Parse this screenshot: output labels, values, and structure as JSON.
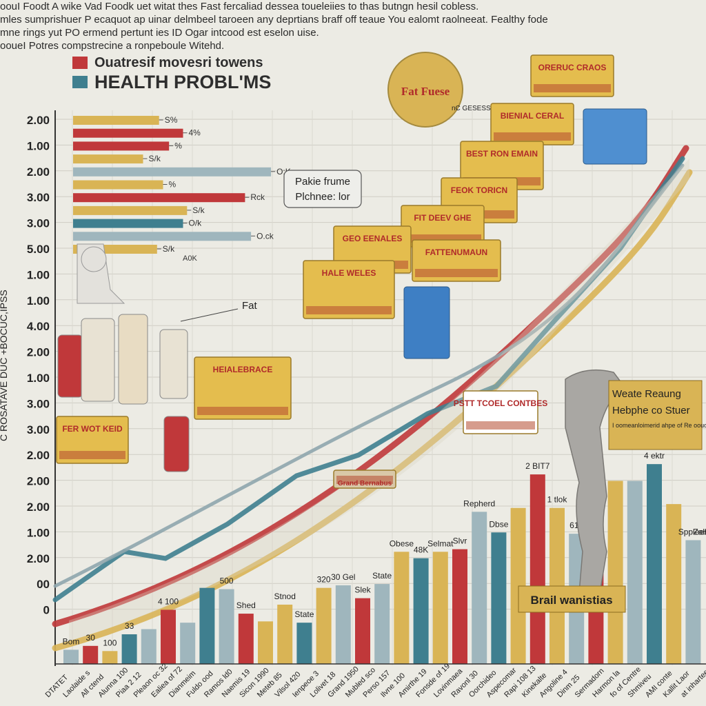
{
  "intro": {
    "lines": [
      "oouI Foodt A wike Vad Foodk uet witat thes   Fast fercaliad dessea toueleiies to thas butngn hesil cobless.",
      "mles sumprishuer P ecaquot ap uinar delmbeel taroeen any deprtians braff off teaue You ealomt raolneeat. Fealthy fode",
      "mne rings yut PO ermend pertunt ies ID Ogar intcood est eselon uise.",
      "ooueI Potres compstrecine a ronpeboule Witehd."
    ]
  },
  "legend": {
    "items": [
      {
        "label": "Ouatresif movesri towens",
        "color": "#c0383a"
      },
      {
        "label": "HEALTH PROBL'MS",
        "color": "#3f7f8f"
      }
    ]
  },
  "callouts": {
    "fat_badge": "Fat Fuese",
    "fat_badge_tag": "nC GESESS",
    "panel_title": "Pakie frume",
    "panel_sub": "Plchnee: lor",
    "fat_label": "Fat",
    "right_box_title": "Weate Reaung",
    "right_box_sub": "Hebphe co Stuer",
    "right_box_text": "I oomeanloimerid ahpe of Re ooud of Gomvinemnerid ieeacd lenaeaind?",
    "pedestal": "Brail wanistias",
    "food_labels": [
      "ORERUC CRAOS",
      "BIENIAL CERAL",
      "BEST RON EMAIN",
      "FEOK TORICN",
      "FIT DEEV GHE",
      "FATTENUMAUN",
      "GEO EENALES",
      "HALE WELES",
      "HEIALEBRACE",
      "FER WOT KEID",
      "PSTT TCOEL CONTBES",
      "Grand Bernabus"
    ]
  },
  "chart_data": [
    {
      "type": "bar",
      "orientation": "horizontal",
      "categories": [
        "2.00",
        "1.00",
        "2.00",
        "3.00",
        "3.00",
        "5.00",
        "1.00",
        "1.00",
        "4.00",
        "2.00",
        "1.00",
        "3.00",
        "3.00",
        "2.00",
        "2.00",
        "2.00",
        "1.00",
        "2.00",
        "00",
        "0"
      ],
      "bars": [
        {
          "row": 0,
          "value": 2.15,
          "color": "#d9b455",
          "label": "S%"
        },
        {
          "row": 0.5,
          "value": 2.75,
          "color": "#c0383a",
          "label": "4%"
        },
        {
          "row": 1,
          "value": 2.4,
          "color": "#c0383a",
          "label": "%"
        },
        {
          "row": 1.5,
          "value": 1.75,
          "color": "#d9b455",
          "label": "S/k"
        },
        {
          "row": 2,
          "value": 4.95,
          "color": "#9fb6bd",
          "label": "O:K"
        },
        {
          "row": 2.5,
          "value": 2.25,
          "color": "#d9b455",
          "label": "%"
        },
        {
          "row": 3,
          "value": 4.3,
          "color": "#c0383a",
          "label": "Rck"
        },
        {
          "row": 3.5,
          "value": 2.85,
          "color": "#d9b455",
          "label": "S/k"
        },
        {
          "row": 4,
          "value": 2.75,
          "color": "#3f7f8f",
          "label": "O/k"
        },
        {
          "row": 4.5,
          "value": 4.45,
          "color": "#9fb6bd",
          "label": "O.ck"
        },
        {
          "row": 5,
          "value": 2.1,
          "color": "#d9b455",
          "label": "S/k"
        }
      ],
      "labels_extra": [
        "A0K"
      ],
      "ylabel": "C ROSATAVE DUC +BOCUC,IPSS"
    },
    {
      "type": "bar",
      "categories": [
        "DTATET",
        "Laolaide s",
        "All ctend",
        "Alunna 100",
        "Piaa 2 12",
        "Pleaon oc 32",
        "Ealiea of 72",
        "Dianmeim",
        "Fuldo ood",
        "Ramos ld0",
        "Naemis 19",
        "Sicon 1990",
        "Meteb 85",
        "Vilsol 420",
        "Ienpeoe 3",
        "Lolivet 18",
        "Grand 1950",
        "Mubled sco",
        "Perso 157",
        "Ilvne 100",
        "Amirthe 19",
        "Fonsde of 19",
        "Lovinmaea",
        "Ravonl 30",
        "Oorchideo",
        "Aspecomar",
        "Rapi 108 13",
        "Kinekalte",
        "Angoline 4",
        "Dinm 25",
        "Sermadorn",
        "Harmon la",
        "fo of Centre",
        "Shmiveu",
        "AMI conte",
        "Kallit Laor",
        "at inhartees"
      ],
      "series": [
        {
          "color": "#9fb6bd",
          "values": [
            0.55,
            0.7,
            0.5,
            0.55,
            0.6,
            0.6,
            0.7,
            0.6,
            0.6,
            0.6,
            0.55,
            0.65,
            0.6,
            0.55,
            0.55,
            0.6,
            0.6,
            0.55,
            0.6,
            0.6,
            0.55,
            0.6,
            0.6,
            0.55,
            0.6,
            0.55,
            0.6,
            0.6,
            0.55,
            0.6,
            0.6,
            0.55,
            0.6,
            0.55,
            0.6,
            0.6,
            0.6
          ]
        }
      ],
      "bars": [
        {
          "x": 0,
          "value": 0.55,
          "color": "#9fb6bd"
        },
        {
          "x": 1,
          "value": 0.7,
          "color": "#c0383a"
        },
        {
          "x": 2,
          "value": 0.5,
          "color": "#d9b455"
        },
        {
          "x": 3,
          "value": 1.15,
          "color": "#3f7f8f"
        },
        {
          "x": 4,
          "value": 1.35,
          "color": "#9fb6bd"
        },
        {
          "x": 5,
          "value": 2.1,
          "color": "#c0383a"
        },
        {
          "x": 6,
          "value": 1.6,
          "color": "#9fb6bd"
        },
        {
          "x": 7,
          "value": 2.95,
          "color": "#3f7f8f"
        },
        {
          "x": 8,
          "value": 2.9,
          "color": "#9fb6bd"
        },
        {
          "x": 9,
          "value": 1.95,
          "color": "#c0383a"
        },
        {
          "x": 10,
          "value": 1.65,
          "color": "#d9b455"
        },
        {
          "x": 11,
          "value": 2.3,
          "color": "#d9b455"
        },
        {
          "x": 12,
          "value": 1.6,
          "color": "#3f7f8f"
        },
        {
          "x": 13,
          "value": 2.95,
          "color": "#d9b455"
        },
        {
          "x": 14,
          "value": 3.05,
          "color": "#9fb6bd"
        },
        {
          "x": 15,
          "value": 2.55,
          "color": "#c0383a"
        },
        {
          "x": 16,
          "value": 3.1,
          "color": "#9fb6bd"
        },
        {
          "x": 17,
          "value": 4.35,
          "color": "#d9b455"
        },
        {
          "x": 18,
          "value": 4.1,
          "color": "#3f7f8f"
        },
        {
          "x": 19,
          "value": 4.35,
          "color": "#d9b455"
        },
        {
          "x": 20,
          "value": 4.45,
          "color": "#c0383a"
        },
        {
          "x": 21,
          "value": 5.9,
          "color": "#9fb6bd"
        },
        {
          "x": 22,
          "value": 5.1,
          "color": "#3f7f8f"
        },
        {
          "x": 23,
          "value": 6.05,
          "color": "#d9b455"
        },
        {
          "x": 24,
          "value": 7.35,
          "color": "#c0383a"
        },
        {
          "x": 25,
          "value": 6.05,
          "color": "#d9b455"
        },
        {
          "x": 26,
          "value": 5.05,
          "color": "#9fb6bd"
        },
        {
          "x": 27,
          "value": 6.35,
          "color": "#c0383a"
        },
        {
          "x": 28,
          "value": 7.1,
          "color": "#d9b455"
        },
        {
          "x": 29,
          "value": 7.1,
          "color": "#9fb6bd"
        },
        {
          "x": 30,
          "value": 7.75,
          "color": "#3f7f8f"
        },
        {
          "x": 31,
          "value": 6.2,
          "color": "#d9b455"
        },
        {
          "x": 32,
          "value": 4.8,
          "color": "#9fb6bd"
        }
      ],
      "data_labels": [
        {
          "x": 0,
          "text": "Bom"
        },
        {
          "x": 1,
          "text": "30"
        },
        {
          "x": 2,
          "text": "100"
        },
        {
          "x": 3,
          "text": "33"
        },
        {
          "x": 5,
          "text": "4 100"
        },
        {
          "x": 8,
          "text": "500"
        },
        {
          "x": 9,
          "text": "Shed"
        },
        {
          "x": 11,
          "text": "Stnod"
        },
        {
          "x": 12,
          "text": "State"
        },
        {
          "x": 13,
          "text": "320"
        },
        {
          "x": 14,
          "text": "30 Gel"
        },
        {
          "x": 15,
          "text": "Slek"
        },
        {
          "x": 16,
          "text": "State"
        },
        {
          "x": 17,
          "text": "Obese"
        },
        {
          "x": 18,
          "text": "48K"
        },
        {
          "x": 19,
          "text": "Selmat"
        },
        {
          "x": 20,
          "text": "Slvr"
        },
        {
          "x": 21,
          "text": "Repherd"
        },
        {
          "x": 22,
          "text": "Dbse"
        },
        {
          "x": 24,
          "text": "2 BIT7"
        },
        {
          "x": 25,
          "text": "1 tlok"
        },
        {
          "x": 26,
          "text": "614"
        },
        {
          "x": 30,
          "text": "4 ektr"
        },
        {
          "x": 32,
          "text": "Spplees"
        },
        {
          "x": 32.4,
          "text": "Zalk"
        }
      ],
      "trend_lines": [
        {
          "color": "#d9b455",
          "name": ""
        },
        {
          "color": "#c0383a",
          "name": ""
        },
        {
          "color": "#3f7f8f",
          "name": ""
        }
      ]
    }
  ]
}
